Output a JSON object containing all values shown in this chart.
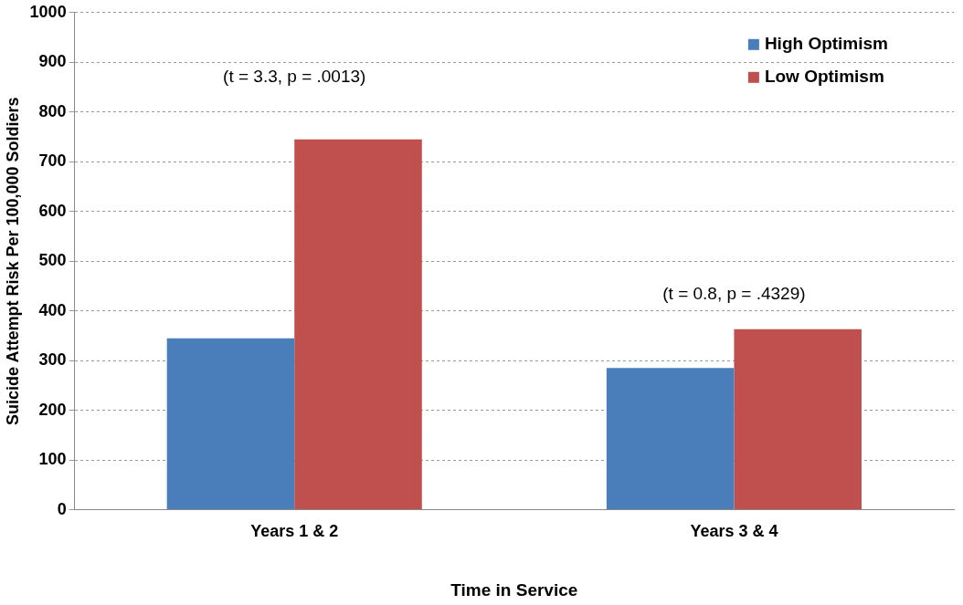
{
  "chart_data": {
    "type": "bar",
    "xlabel": "Time in Service",
    "ylabel": "Suicide Attempt Risk Per 100,000 Soldiers",
    "categories": [
      "Years 1 & 2",
      "Years 3 & 4"
    ],
    "series": [
      {
        "name": "High Optimism",
        "color": "#4a7ebb",
        "values": [
          345,
          285
        ]
      },
      {
        "name": "Low Optimism",
        "color": "#c0504d",
        "values": [
          745,
          363
        ]
      }
    ],
    "ylim": [
      0,
      1000
    ],
    "yticks": [
      0,
      100,
      200,
      300,
      400,
      500,
      600,
      700,
      800,
      900,
      1000
    ],
    "grid": "y",
    "legend": "top right",
    "annotations": [
      "(t = 3.3, p = .0013)",
      "(t = 0.8, p = .4329)"
    ]
  }
}
